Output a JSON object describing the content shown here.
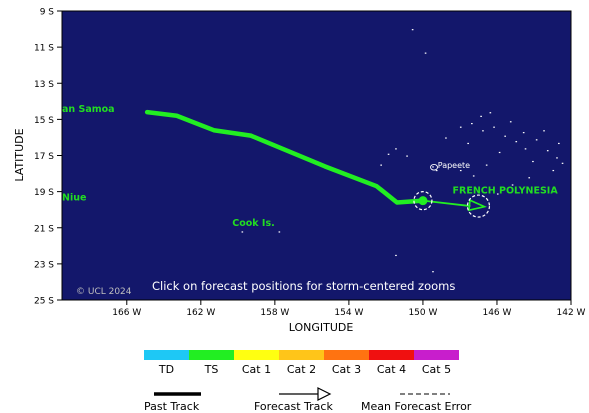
{
  "map": {
    "x_axis_label": "LONGITUDE",
    "y_axis_label": "LATITUDE",
    "lat_ticks": [
      "9 S",
      "11 S",
      "13 S",
      "15 S",
      "17 S",
      "19 S",
      "21 S",
      "23 S",
      "25 S"
    ],
    "lon_ticks": [
      "166 W",
      "162 W",
      "158 W",
      "154 W",
      "150 W",
      "146 W",
      "142 W"
    ],
    "lat_range_deg": [
      -9,
      -25
    ],
    "lon_range_deg": [
      -169.5,
      -142
    ],
    "ocean_color": "#13176b",
    "land_color": "#ffffff",
    "place_labels": [
      {
        "text": "an Samoa",
        "lon": -169.5,
        "lat": -14.6,
        "color": "#22dd22"
      },
      {
        "text": "Niue",
        "lon": -169.5,
        "lat": -19.5,
        "color": "#22dd22"
      },
      {
        "text": "Cook Is.",
        "lon": -160.3,
        "lat": -20.9,
        "color": "#22dd22"
      },
      {
        "text": "FRENCH POLYNESIA",
        "lon": -148.4,
        "lat": -19.1,
        "color": "#22dd22"
      },
      {
        "text": "Papeete",
        "lon": -149.2,
        "lat": -17.7,
        "color": "#ffffff"
      }
    ],
    "copyright": "© UCL 2024",
    "hint": "Click on forecast positions for storm-centered zooms"
  },
  "track": {
    "past": [
      {
        "lon": -164.9,
        "lat": -14.6
      },
      {
        "lon": -163.3,
        "lat": -14.8
      },
      {
        "lon": -161.3,
        "lat": -15.6
      },
      {
        "lon": -159.3,
        "lat": -15.9
      },
      {
        "lon": -155.3,
        "lat": -17.6
      },
      {
        "lon": -152.5,
        "lat": -18.7
      },
      {
        "lon": -151.4,
        "lat": -19.6
      },
      {
        "lon": -150.0,
        "lat": -19.5
      }
    ],
    "past_category": "TS",
    "forecast": [
      {
        "lon": -150.0,
        "lat": -19.5
      },
      {
        "lon": -147.0,
        "lat": -19.8
      }
    ],
    "forecast_category": "TS",
    "forecast_points": [
      {
        "lon": -150.0,
        "lat": -19.5
      },
      {
        "lon": -147.0,
        "lat": -19.8
      }
    ]
  },
  "legend": {
    "categories": [
      {
        "label": "TD",
        "color": "#1ec8f5"
      },
      {
        "label": "TS",
        "color": "#22ee22"
      },
      {
        "label": "Cat 1",
        "color": "#ffff11"
      },
      {
        "label": "Cat 2",
        "color": "#ffc519"
      },
      {
        "label": "Cat 3",
        "color": "#ff7311"
      },
      {
        "label": "Cat 4",
        "color": "#f01010"
      },
      {
        "label": "Cat 5",
        "color": "#c81ecc"
      }
    ],
    "past_track": "Past Track",
    "forecast_track": "Forecast Track",
    "mean_error": "Mean Forecast Error"
  }
}
